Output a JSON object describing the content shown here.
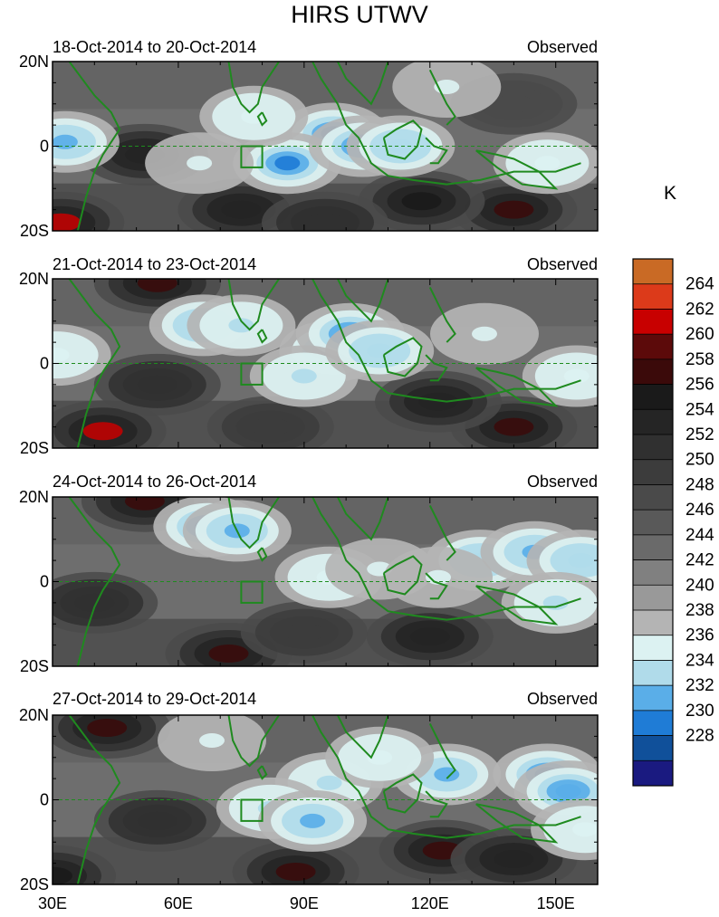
{
  "title": "HIRS UTWV",
  "unit": "K",
  "chart_data": {
    "type": "heatmap",
    "title": "HIRS UTWV",
    "x_axis": {
      "ticks": [
        "30E",
        "60E",
        "90E",
        "120E",
        "150E"
      ],
      "range": [
        "30E",
        "160E"
      ]
    },
    "y_axis": {
      "ticks": [
        "20N",
        "0",
        "20S"
      ],
      "range": [
        "20S",
        "20N"
      ]
    },
    "equator_line": true,
    "box_region": {
      "lon": [
        75,
        80
      ],
      "lat": [
        -5,
        0
      ]
    },
    "panels": [
      {
        "date_range": "18-Oct-2014 to 20-Oct-2014",
        "status": "Observed",
        "blobs": [
          {
            "lon": 97,
            "lat": 3,
            "value": 230
          },
          {
            "lon": 86,
            "lat": -4,
            "value": 231
          },
          {
            "lon": 104,
            "lat": 0,
            "value": 232
          },
          {
            "lon": 78,
            "lat": 7,
            "value": 236
          },
          {
            "lon": 113,
            "lat": 0,
            "value": 234
          },
          {
            "lon": 33,
            "lat": 1,
            "value": 233
          },
          {
            "lon": 65,
            "lat": -4,
            "value": 237
          },
          {
            "lon": 148,
            "lat": -4,
            "value": 236
          },
          {
            "lon": 124,
            "lat": 14,
            "value": 237
          },
          {
            "lon": 32,
            "lat": -18,
            "value": 262
          },
          {
            "lon": 140,
            "lat": -15,
            "value": 258
          },
          {
            "lon": 118,
            "lat": -13,
            "value": 257
          },
          {
            "lon": 52,
            "lat": -2,
            "value": 254
          },
          {
            "lon": 75,
            "lat": -15,
            "value": 254
          },
          {
            "lon": 95,
            "lat": -18,
            "value": 252
          },
          {
            "lon": 140,
            "lat": 10,
            "value": 248
          }
        ]
      },
      {
        "date_range": "21-Oct-2014 to 23-Oct-2014",
        "status": "Observed",
        "blobs": [
          {
            "lon": 97,
            "lat": 3,
            "value": 231
          },
          {
            "lon": 101,
            "lat": 7,
            "value": 232
          },
          {
            "lon": 66,
            "lat": 9,
            "value": 234
          },
          {
            "lon": 75,
            "lat": 9,
            "value": 235
          },
          {
            "lon": 90,
            "lat": -3,
            "value": 235
          },
          {
            "lon": 108,
            "lat": 3,
            "value": 234
          },
          {
            "lon": 155,
            "lat": -3,
            "value": 236
          },
          {
            "lon": 133,
            "lat": 7,
            "value": 237
          },
          {
            "lon": 31,
            "lat": 2,
            "value": 236
          },
          {
            "lon": 42,
            "lat": -16,
            "value": 262
          },
          {
            "lon": 140,
            "lat": -15,
            "value": 258
          },
          {
            "lon": 55,
            "lat": 19,
            "value": 258
          },
          {
            "lon": 122,
            "lat": -9,
            "value": 254
          },
          {
            "lon": 55,
            "lat": -5,
            "value": 252
          },
          {
            "lon": 82,
            "lat": -15,
            "value": 250
          }
        ]
      },
      {
        "date_range": "24-Oct-2014 to 26-Oct-2014",
        "status": "Observed",
        "blobs": [
          {
            "lon": 67,
            "lat": 13,
            "value": 230
          },
          {
            "lon": 74,
            "lat": 12,
            "value": 233
          },
          {
            "lon": 96,
            "lat": 1,
            "value": 236
          },
          {
            "lon": 108,
            "lat": 3,
            "value": 237
          },
          {
            "lon": 132,
            "lat": 5,
            "value": 234
          },
          {
            "lon": 145,
            "lat": 7,
            "value": 233
          },
          {
            "lon": 156,
            "lat": 5,
            "value": 234
          },
          {
            "lon": 150,
            "lat": -5,
            "value": 235
          },
          {
            "lon": 122,
            "lat": 1,
            "value": 237
          },
          {
            "lon": 72,
            "lat": -17,
            "value": 258
          },
          {
            "lon": 52,
            "lat": 19,
            "value": 258
          },
          {
            "lon": 120,
            "lat": -13,
            "value": 254
          },
          {
            "lon": 40,
            "lat": -5,
            "value": 252
          },
          {
            "lon": 90,
            "lat": -12,
            "value": 250
          }
        ]
      },
      {
        "date_range": "27-Oct-2014 to 29-Oct-2014",
        "status": "Observed",
        "blobs": [
          {
            "lon": 148,
            "lat": 6,
            "value": 230
          },
          {
            "lon": 153,
            "lat": 2,
            "value": 232
          },
          {
            "lon": 124,
            "lat": 6,
            "value": 233
          },
          {
            "lon": 96,
            "lat": 4,
            "value": 235
          },
          {
            "lon": 82,
            "lat": -2,
            "value": 235
          },
          {
            "lon": 68,
            "lat": 14,
            "value": 237
          },
          {
            "lon": 108,
            "lat": 10,
            "value": 236
          },
          {
            "lon": 92,
            "lat": -5,
            "value": 233
          },
          {
            "lon": 157,
            "lat": -7,
            "value": 236
          },
          {
            "lon": 88,
            "lat": -17,
            "value": 258
          },
          {
            "lon": 123,
            "lat": -12,
            "value": 258
          },
          {
            "lon": 43,
            "lat": 17,
            "value": 258
          },
          {
            "lon": 55,
            "lat": -5,
            "value": 252
          },
          {
            "lon": 140,
            "lat": -14,
            "value": 254
          },
          {
            "lon": 30,
            "lat": -18,
            "value": 256
          }
        ]
      }
    ],
    "colorbar": {
      "labels": [
        "264",
        "262",
        "260",
        "258",
        "256",
        "254",
        "252",
        "250",
        "248",
        "246",
        "244",
        "242",
        "240",
        "238",
        "236",
        "234",
        "232",
        "230",
        "228"
      ],
      "colors": [
        "#c96a25",
        "#dc3a1a",
        "#c80000",
        "#5c0a0a",
        "#3b0a0a",
        "#1a1a1a",
        "#252525",
        "#303030",
        "#3c3c3c",
        "#4a4a4a",
        "#595959",
        "#6a6a6a",
        "#808080",
        "#999999",
        "#b4b4b4",
        "#dcf2f2",
        "#b0dbea",
        "#5aaee8",
        "#1f7cd6",
        "#10509a",
        "#1a1a80"
      ]
    }
  }
}
